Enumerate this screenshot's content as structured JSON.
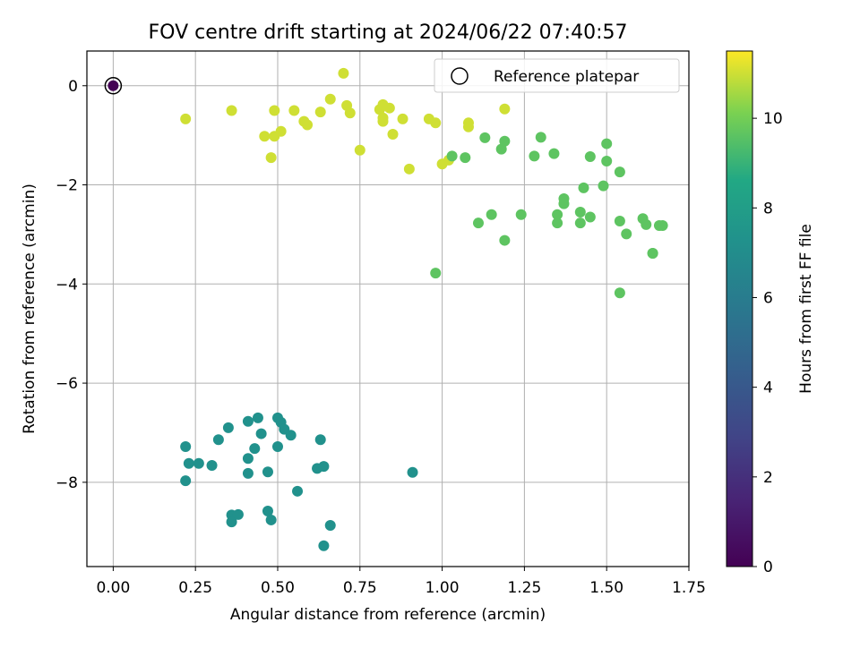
{
  "chart_data": {
    "type": "scatter",
    "title": "FOV centre drift starting at 2024/06/22 07:40:57",
    "xlabel": "Angular distance from reference (arcmin)",
    "ylabel": "Rotation from reference (arcmin)",
    "xlim": [
      -0.08,
      1.75
    ],
    "ylim": [
      -9.7,
      0.7
    ],
    "xticks": [
      0.0,
      0.25,
      0.5,
      0.75,
      1.0,
      1.25,
      1.5,
      1.75
    ],
    "xtick_labels": [
      "0.00",
      "0.25",
      "0.50",
      "0.75",
      "1.00",
      "1.25",
      "1.50",
      "1.75"
    ],
    "yticks": [
      0,
      -2,
      -4,
      -6,
      -8
    ],
    "ytick_labels": [
      "0",
      "−2",
      "−4",
      "−6",
      "−8"
    ],
    "grid": true,
    "legend": {
      "position": "top-right",
      "label": "Reference platepar"
    },
    "reference_point": {
      "x": 0.0,
      "y": 0.0,
      "hours": 0
    },
    "colorbar": {
      "label": "Hours from first FF file",
      "range": [
        0,
        11.5
      ],
      "colormap": "viridis",
      "ticks": [
        0,
        2,
        4,
        6,
        8,
        10
      ],
      "tick_labels": [
        "0",
        "2",
        "4",
        "6",
        "8",
        "10"
      ]
    },
    "series": [
      {
        "hours": 11.0,
        "points": [
          [
            0.22,
            -0.67
          ],
          [
            0.36,
            -0.5
          ],
          [
            0.46,
            -1.02
          ],
          [
            0.48,
            -1.45
          ],
          [
            0.49,
            -1.02
          ],
          [
            0.49,
            -0.5
          ],
          [
            0.51,
            -0.92
          ],
          [
            0.55,
            -0.5
          ],
          [
            0.58,
            -0.72
          ],
          [
            0.59,
            -0.79
          ],
          [
            0.63,
            -0.53
          ],
          [
            0.66,
            -0.27
          ],
          [
            0.7,
            0.25
          ],
          [
            0.71,
            -0.4
          ],
          [
            0.72,
            -0.55
          ],
          [
            0.75,
            -1.3
          ],
          [
            0.81,
            -0.48
          ],
          [
            0.82,
            -0.38
          ],
          [
            0.82,
            -0.65
          ],
          [
            0.82,
            -0.72
          ],
          [
            0.84,
            -0.45
          ],
          [
            0.85,
            -0.98
          ],
          [
            0.88,
            -0.67
          ],
          [
            0.9,
            -1.68
          ],
          [
            0.96,
            -0.67
          ],
          [
            0.98,
            -0.75
          ],
          [
            1.0,
            -1.58
          ],
          [
            1.02,
            -1.5
          ],
          [
            1.08,
            -0.75
          ],
          [
            1.08,
            -0.83
          ],
          [
            1.19,
            -0.47
          ]
        ]
      },
      {
        "hours": 9.6,
        "points": [
          [
            0.98,
            -3.78
          ],
          [
            1.03,
            -1.42
          ],
          [
            1.07,
            -1.45
          ],
          [
            1.11,
            -2.77
          ],
          [
            1.13,
            -1.05
          ],
          [
            1.15,
            -2.6
          ],
          [
            1.18,
            -1.28
          ],
          [
            1.19,
            -1.12
          ],
          [
            1.19,
            -3.12
          ],
          [
            1.24,
            -2.6
          ],
          [
            1.28,
            -1.42
          ],
          [
            1.3,
            -1.04
          ],
          [
            1.34,
            -1.37
          ],
          [
            1.35,
            -2.6
          ],
          [
            1.35,
            -2.77
          ],
          [
            1.37,
            -2.28
          ],
          [
            1.37,
            -2.38
          ],
          [
            1.42,
            -2.77
          ],
          [
            1.42,
            -2.55
          ],
          [
            1.43,
            -2.06
          ],
          [
            1.45,
            -2.65
          ],
          [
            1.45,
            -1.43
          ],
          [
            1.49,
            -2.02
          ],
          [
            1.5,
            -1.17
          ],
          [
            1.5,
            -1.52
          ],
          [
            1.54,
            -1.74
          ],
          [
            1.54,
            -2.73
          ],
          [
            1.54,
            -4.18
          ],
          [
            1.56,
            -2.99
          ],
          [
            1.61,
            -2.68
          ],
          [
            1.62,
            -2.8
          ],
          [
            1.64,
            -3.38
          ],
          [
            1.64,
            -3.38
          ],
          [
            1.66,
            -2.82
          ],
          [
            1.67,
            -2.82
          ]
        ]
      },
      {
        "hours": 7.2,
        "points": [
          [
            0.22,
            -7.28
          ],
          [
            0.22,
            -7.97
          ],
          [
            0.23,
            -7.62
          ],
          [
            0.26,
            -7.62
          ],
          [
            0.3,
            -7.66
          ],
          [
            0.32,
            -7.14
          ],
          [
            0.35,
            -6.9
          ],
          [
            0.36,
            -8.66
          ],
          [
            0.36,
            -8.8
          ],
          [
            0.38,
            -8.65
          ],
          [
            0.41,
            -6.77
          ],
          [
            0.41,
            -7.52
          ],
          [
            0.41,
            -7.82
          ],
          [
            0.43,
            -7.32
          ],
          [
            0.44,
            -6.7
          ],
          [
            0.45,
            -7.02
          ],
          [
            0.47,
            -7.79
          ],
          [
            0.47,
            -8.58
          ],
          [
            0.48,
            -8.76
          ],
          [
            0.5,
            -6.7
          ],
          [
            0.5,
            -7.28
          ],
          [
            0.51,
            -6.79
          ],
          [
            0.52,
            -6.93
          ],
          [
            0.54,
            -7.05
          ],
          [
            0.56,
            -8.18
          ],
          [
            0.62,
            -7.72
          ],
          [
            0.63,
            -7.14
          ],
          [
            0.64,
            -7.68
          ],
          [
            0.64,
            -9.28
          ],
          [
            0.66,
            -8.87
          ],
          [
            0.91,
            -7.8
          ]
        ]
      }
    ]
  }
}
